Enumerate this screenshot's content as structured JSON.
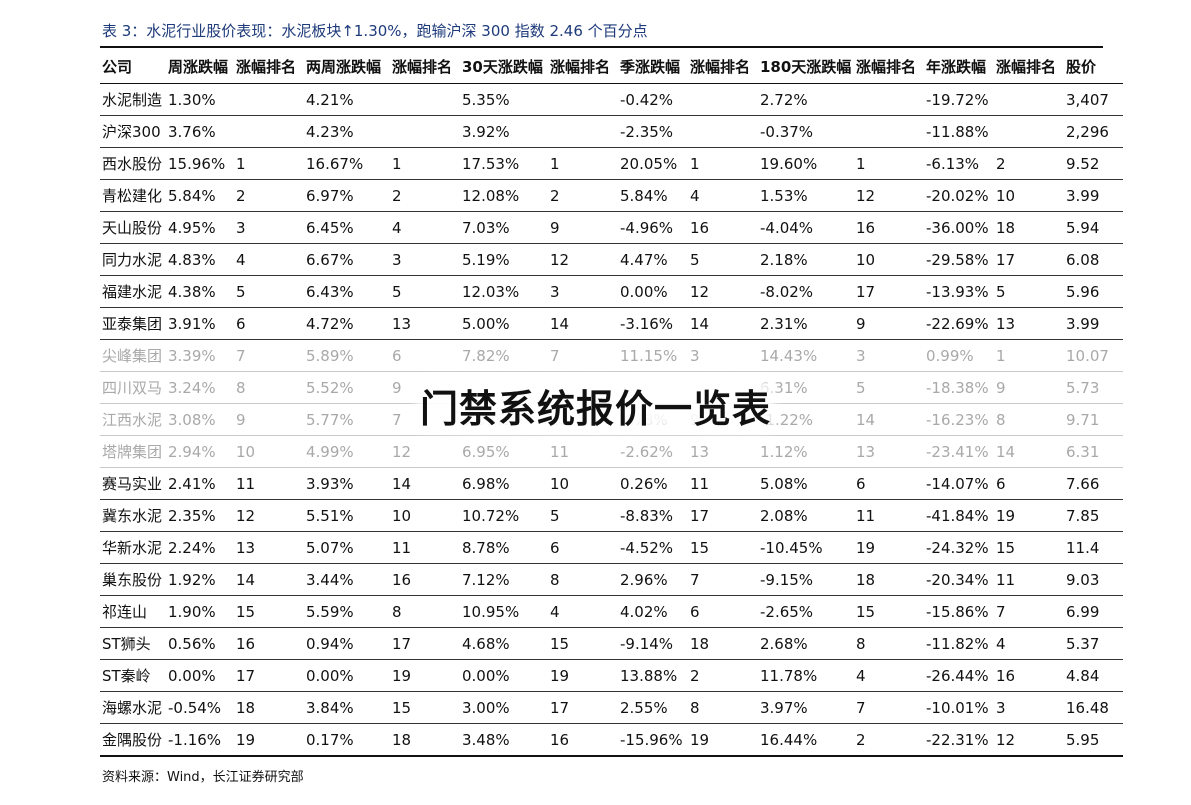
{
  "caption": "表 3：水泥行业股价表现：水泥板块↑1.30%，跑输沪深 300 指数 2.46 个百分点",
  "headers": [
    "公司",
    "周涨跌幅",
    "涨幅排名",
    "两周涨跌幅",
    "涨幅排名",
    "30天涨跌幅",
    "涨幅排名",
    "季涨跌幅",
    "涨幅排名",
    "180天涨跌幅",
    "涨幅排名",
    "年涨跌幅",
    "涨幅排名",
    "股价"
  ],
  "rows": [
    [
      "水泥制造",
      "1.30%",
      "",
      "4.21%",
      "",
      "5.35%",
      "",
      "-0.42%",
      "",
      "2.72%",
      "",
      "-19.72%",
      "",
      "3,407"
    ],
    [
      "沪深300",
      "3.76%",
      "",
      "4.23%",
      "",
      "3.92%",
      "",
      "-2.35%",
      "",
      "-0.37%",
      "",
      "-11.88%",
      "",
      "2,296"
    ],
    [
      "西水股份",
      "15.96%",
      "1",
      "16.67%",
      "1",
      "17.53%",
      "1",
      "20.05%",
      "1",
      "19.60%",
      "1",
      "-6.13%",
      "2",
      "9.52"
    ],
    [
      "青松建化",
      "5.84%",
      "2",
      "6.97%",
      "2",
      "12.08%",
      "2",
      "5.84%",
      "4",
      "1.53%",
      "12",
      "-20.02%",
      "10",
      "3.99"
    ],
    [
      "天山股份",
      "4.95%",
      "3",
      "6.45%",
      "4",
      "7.03%",
      "9",
      "-4.96%",
      "16",
      "-4.04%",
      "16",
      "-36.00%",
      "18",
      "5.94"
    ],
    [
      "同力水泥",
      "4.83%",
      "4",
      "6.67%",
      "3",
      "5.19%",
      "12",
      "4.47%",
      "5",
      "2.18%",
      "10",
      "-29.58%",
      "17",
      "6.08"
    ],
    [
      "福建水泥",
      "4.38%",
      "5",
      "6.43%",
      "5",
      "12.03%",
      "3",
      "0.00%",
      "12",
      "-8.02%",
      "17",
      "-13.93%",
      "5",
      "5.96"
    ],
    [
      "亚泰集团",
      "3.91%",
      "6",
      "4.72%",
      "13",
      "5.00%",
      "14",
      "-3.16%",
      "14",
      "2.31%",
      "9",
      "-22.69%",
      "13",
      "3.99"
    ],
    [
      "尖峰集团",
      "3.39%",
      "7",
      "5.89%",
      "6",
      "7.82%",
      "7",
      "11.15%",
      "3",
      "14.43%",
      "3",
      "0.99%",
      "1",
      "10.07"
    ],
    [
      "四川双马",
      "3.24%",
      "8",
      "5.52%",
      "9",
      "",
      "",
      "",
      "",
      "6.31%",
      "5",
      "-18.38%",
      "9",
      "5.73"
    ],
    [
      "江西水泥",
      "3.08%",
      "9",
      "5.77%",
      "7",
      "5.09%",
      "13",
      "1.78%",
      "9",
      "-1.22%",
      "14",
      "-16.23%",
      "8",
      "9.71"
    ],
    [
      "塔牌集团",
      "2.94%",
      "10",
      "4.99%",
      "12",
      "6.95%",
      "11",
      "-2.62%",
      "13",
      "1.12%",
      "13",
      "-23.41%",
      "14",
      "6.31"
    ],
    [
      "赛马实业",
      "2.41%",
      "11",
      "3.93%",
      "14",
      "6.98%",
      "10",
      "0.26%",
      "11",
      "5.08%",
      "6",
      "-14.07%",
      "6",
      "7.66"
    ],
    [
      "冀东水泥",
      "2.35%",
      "12",
      "5.51%",
      "10",
      "10.72%",
      "5",
      "-8.83%",
      "17",
      "2.08%",
      "11",
      "-41.84%",
      "19",
      "7.85"
    ],
    [
      "华新水泥",
      "2.24%",
      "13",
      "5.07%",
      "11",
      "8.78%",
      "6",
      "-4.52%",
      "15",
      "-10.45%",
      "19",
      "-24.32%",
      "15",
      "11.4"
    ],
    [
      "巢东股份",
      "1.92%",
      "14",
      "3.44%",
      "16",
      "7.12%",
      "8",
      "2.96%",
      "7",
      "-9.15%",
      "18",
      "-20.34%",
      "11",
      "9.03"
    ],
    [
      "祁连山",
      "1.90%",
      "15",
      "5.59%",
      "8",
      "10.95%",
      "4",
      "4.02%",
      "6",
      "-2.65%",
      "15",
      "-15.86%",
      "7",
      "6.99"
    ],
    [
      "ST狮头",
      "0.56%",
      "16",
      "0.94%",
      "17",
      "4.68%",
      "15",
      "-9.14%",
      "18",
      "2.68%",
      "8",
      "-11.82%",
      "4",
      "5.37"
    ],
    [
      "ST秦岭",
      "0.00%",
      "17",
      "0.00%",
      "19",
      "0.00%",
      "19",
      "13.88%",
      "2",
      "11.78%",
      "4",
      "-26.44%",
      "16",
      "4.84"
    ],
    [
      "海螺水泥",
      "-0.54%",
      "18",
      "3.84%",
      "15",
      "3.00%",
      "17",
      "2.55%",
      "8",
      "3.97%",
      "7",
      "-10.01%",
      "3",
      "16.48"
    ],
    [
      "金隅股份",
      "-1.16%",
      "19",
      "0.17%",
      "18",
      "3.48%",
      "16",
      "-15.96%",
      "19",
      "16.44%",
      "2",
      "-22.31%",
      "12",
      "5.95"
    ]
  ],
  "faded_rows": [
    8,
    9,
    10,
    11
  ],
  "source": "资料来源：Wind，长江证券研究部",
  "watermark": "门禁系统报价一览表"
}
